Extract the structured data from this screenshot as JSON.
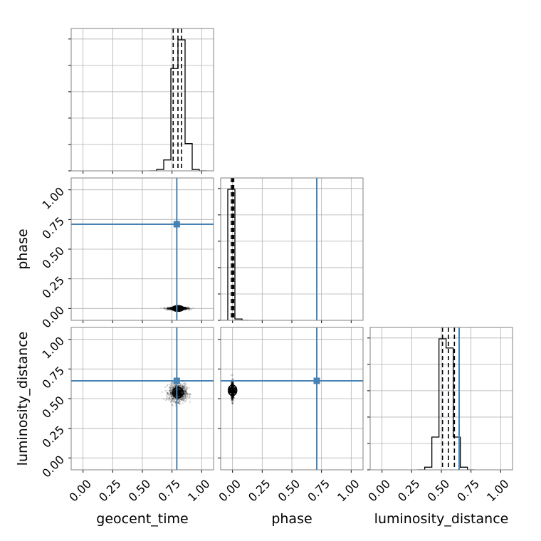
{
  "chart_data": {
    "type": "corner",
    "parameters": [
      "geocent_time",
      "phase",
      "luminosity_distance"
    ],
    "axis_labels": [
      "geocent_time",
      "phase",
      "luminosity_distance"
    ],
    "tick_values": [
      0.0,
      0.25,
      0.5,
      0.75,
      1.0
    ],
    "tick_labels": [
      "0.00",
      "0.25",
      "0.50",
      "0.75",
      "1.00"
    ],
    "axis_ranges": {
      "geocent_time": [
        -0.1,
        1.1
      ],
      "phase": [
        -0.1,
        1.1
      ],
      "luminosity_distance": [
        -0.1,
        1.1
      ]
    },
    "grid": true,
    "truths": {
      "geocent_time": 0.79,
      "phase": 0.71,
      "luminosity_distance": 0.65
    },
    "truth_color": "#4682b4",
    "hist_color": "#000000",
    "quantile_color": "#000000",
    "histograms": {
      "geocent_time": {
        "bin_edges": [
          0.62,
          0.68,
          0.74,
          0.8,
          0.86,
          0.92,
          0.98
        ],
        "heights": [
          0.01,
          0.08,
          0.75,
          0.96,
          0.2,
          0.01
        ],
        "quantiles": [
          0.76,
          0.8,
          0.83
        ]
      },
      "phase": {
        "bin_edges": [
          -0.04,
          0.02,
          0.08
        ],
        "heights": [
          1.0,
          0.01
        ],
        "quantiles": [
          -0.01,
          0.0,
          0.01
        ]
      },
      "luminosity_distance": {
        "bin_edges": [
          0.36,
          0.42,
          0.48,
          0.54,
          0.6,
          0.66,
          0.72
        ],
        "heights": [
          0.02,
          0.25,
          1.0,
          0.93,
          0.25,
          0.02
        ],
        "quantiles": [
          0.51,
          0.56,
          0.61
        ]
      }
    },
    "scatter_clouds": [
      {
        "x": "geocent_time",
        "y": "phase",
        "center": [
          0.8,
          0.0
        ],
        "spread": [
          0.09,
          0.012
        ],
        "core": [
          0.04,
          0.006
        ]
      },
      {
        "x": "geocent_time",
        "y": "luminosity_distance",
        "center": [
          0.8,
          0.55
        ],
        "spread": [
          0.08,
          0.08
        ],
        "core": [
          0.05,
          0.05
        ]
      },
      {
        "x": "phase",
        "y": "luminosity_distance",
        "center": [
          0.0,
          0.57
        ],
        "spread": [
          0.012,
          0.08
        ],
        "core": [
          0.006,
          0.05
        ]
      }
    ]
  }
}
